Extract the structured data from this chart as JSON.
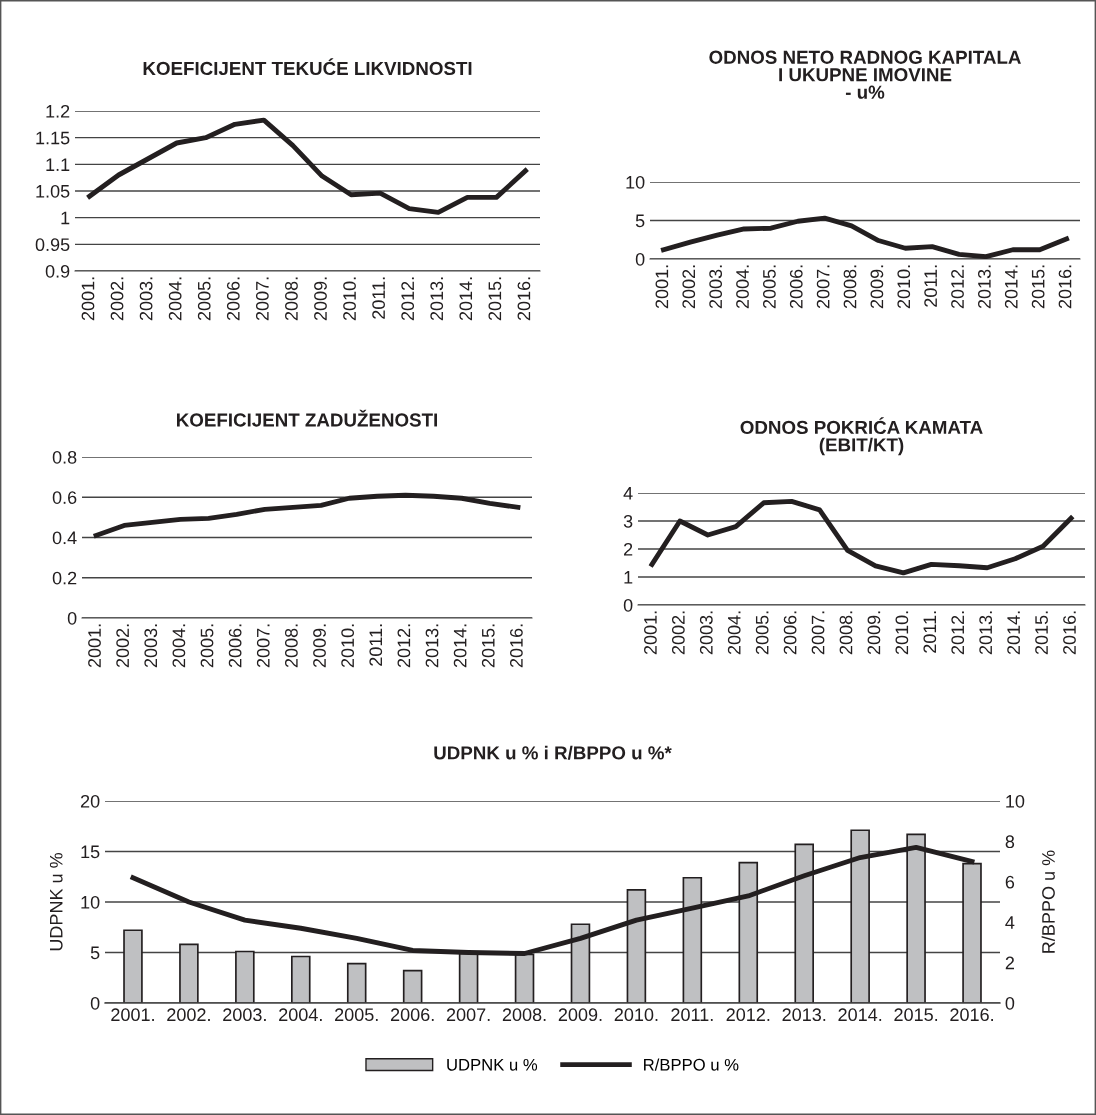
{
  "chart_data": [
    {
      "type": "line",
      "title": "KOEFICIJENT TEKUĆE LIKVIDNOSTI",
      "categories": [
        "2001.",
        "2002.",
        "2003.",
        "2004.",
        "2005.",
        "2006.",
        "2007.",
        "2008.",
        "2009.",
        "2010.",
        "2011.",
        "2012.",
        "2013.",
        "2014.",
        "2015.",
        "2016."
      ],
      "series": [
        {
          "color": "#231f20",
          "values": [
            1.04,
            1.08,
            1.11,
            1.14,
            1.15,
            1.175,
            1.183,
            1.135,
            1.078,
            1.043,
            1.046,
            1.017,
            1.01,
            1.038,
            1.038,
            1.088
          ]
        }
      ],
      "ylim": [
        0.9,
        1.2
      ],
      "yticks": [
        0.9,
        0.95,
        1,
        1.05,
        1.1,
        1.15,
        1.2
      ],
      "grid": "y",
      "legend": false,
      "marker": "none",
      "line_style": "solid"
    },
    {
      "type": "line",
      "title": "ODNOS NETO RADNOG KAPITALA\nI UKUPNE IMOVINE\n- u%",
      "categories": [
        "2001.",
        "2002.",
        "2003.",
        "2004.",
        "2005.",
        "2006.",
        "2007.",
        "2008.",
        "2009.",
        "2010.",
        "2011.",
        "2012.",
        "2013.",
        "2014.",
        "2015.",
        "2016."
      ],
      "series": [
        {
          "color": "#231f20",
          "values": [
            1.2,
            2.2,
            3.1,
            3.9,
            4.0,
            4.9,
            5.3,
            4.3,
            2.4,
            1.4,
            1.6,
            0.6,
            0.3,
            1.2,
            1.2,
            2.6
          ]
        }
      ],
      "ylim": [
        0,
        10
      ],
      "yticks": [
        0,
        5,
        10
      ],
      "grid": "y",
      "legend": false,
      "marker": "none",
      "line_style": "solid"
    },
    {
      "type": "line",
      "title": "KOEFICIJENT ZADUŽENOSTI",
      "categories": [
        "2001.",
        "2002.",
        "2003.",
        "2004.",
        "2005.",
        "2006.",
        "2007.",
        "2008.",
        "2009.",
        "2010.",
        "2011.",
        "2012.",
        "2013.",
        "2014.",
        "2015.",
        "2016."
      ],
      "series": [
        {
          "color": "#231f20",
          "values": [
            0.41,
            0.46,
            0.475,
            0.49,
            0.495,
            0.515,
            0.54,
            0.55,
            0.56,
            0.595,
            0.605,
            0.61,
            0.605,
            0.595,
            0.57,
            0.55
          ]
        }
      ],
      "ylim": [
        0,
        0.8
      ],
      "yticks": [
        0,
        0.2,
        0.4,
        0.6,
        0.8
      ],
      "grid": "y",
      "legend": false,
      "marker": "none",
      "line_style": "solid"
    },
    {
      "type": "line",
      "title": "ODNOS POKRIĆA KAMATA\n(EBIT/KT)",
      "categories": [
        "2001.",
        "2002.",
        "2003.",
        "2004.",
        "2005.",
        "2006.",
        "2007.",
        "2008.",
        "2009.",
        "2010.",
        "2011.",
        "2012.",
        "2013.",
        "2014.",
        "2015.",
        "2016."
      ],
      "series": [
        {
          "color": "#231f20",
          "values": [
            1.45,
            3.0,
            2.5,
            2.8,
            3.65,
            3.7,
            3.4,
            1.95,
            1.4,
            1.15,
            1.45,
            1.4,
            1.33,
            1.65,
            2.1,
            3.1
          ]
        }
      ],
      "ylim": [
        0,
        4
      ],
      "yticks": [
        0,
        1,
        2,
        3,
        4
      ],
      "grid": "y",
      "legend": false,
      "marker": "none",
      "line_style": "solid"
    },
    {
      "type": "bar",
      "title": "UDPNK u % i R/BPPO u %*",
      "ylabel": "UDPNK u %",
      "y2label": "R/BPPO u %",
      "categories": [
        "2001.",
        "2002.",
        "2003.",
        "2004.",
        "2005.",
        "2006.",
        "2007.",
        "2008.",
        "2009.",
        "2010.",
        "2011.",
        "2012.",
        "2013.",
        "2014.",
        "2015.",
        "2016."
      ],
      "series": [
        {
          "name": "UDPNK u %",
          "type": "bar",
          "axis": "y",
          "color": "#bfc0c2",
          "values": [
            7.2,
            5.8,
            5.1,
            4.6,
            3.9,
            3.2,
            4.9,
            4.8,
            7.8,
            11.2,
            12.4,
            13.9,
            15.7,
            17.1,
            16.7,
            13.8
          ]
        },
        {
          "name": "R/BPPO u %",
          "type": "line",
          "axis": "y2",
          "color": "#231f20",
          "values": [
            6.2,
            5.0,
            4.1,
            3.7,
            3.2,
            2.6,
            2.5,
            2.45,
            3.2,
            4.1,
            4.7,
            5.3,
            6.3,
            7.2,
            7.7,
            7.0
          ]
        }
      ],
      "ylim": [
        0,
        20
      ],
      "yticks": [
        0,
        5,
        10,
        15,
        20
      ],
      "y2lim": [
        0,
        10
      ],
      "y2ticks": [
        0,
        2,
        4,
        6,
        8,
        10
      ],
      "grid": "y",
      "legend": "bottom",
      "marker": "none",
      "line_style": "solid"
    }
  ]
}
